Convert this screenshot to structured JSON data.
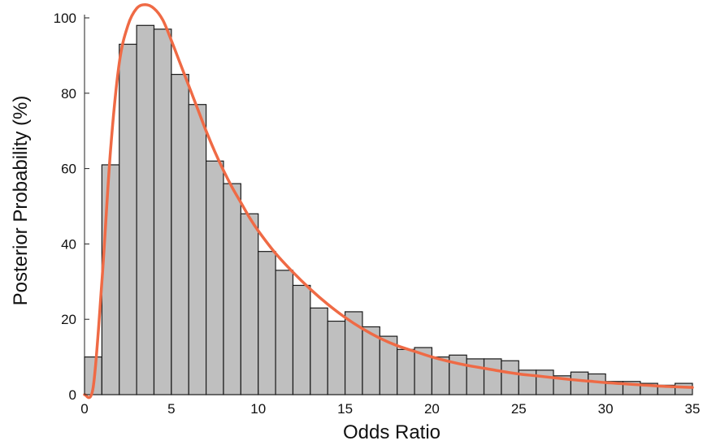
{
  "chart_data": {
    "type": "bar",
    "title": "",
    "xlabel": "Odds Ratio",
    "ylabel": "Posterior Probability (%)",
    "xlim": [
      0,
      35
    ],
    "ylim": [
      0,
      100
    ],
    "bin_width": 1,
    "bins": [
      {
        "x0": 0,
        "x1": 1,
        "value": 10
      },
      {
        "x0": 1,
        "x1": 2,
        "value": 61
      },
      {
        "x0": 2,
        "x1": 3,
        "value": 93
      },
      {
        "x0": 3,
        "x1": 4,
        "value": 98
      },
      {
        "x0": 4,
        "x1": 5,
        "value": 97
      },
      {
        "x0": 5,
        "x1": 6,
        "value": 85
      },
      {
        "x0": 6,
        "x1": 7,
        "value": 77
      },
      {
        "x0": 7,
        "x1": 8,
        "value": 62
      },
      {
        "x0": 8,
        "x1": 9,
        "value": 56
      },
      {
        "x0": 9,
        "x1": 10,
        "value": 48
      },
      {
        "x0": 10,
        "x1": 11,
        "value": 38
      },
      {
        "x0": 11,
        "x1": 12,
        "value": 33
      },
      {
        "x0": 12,
        "x1": 13,
        "value": 29
      },
      {
        "x0": 13,
        "x1": 14,
        "value": 23
      },
      {
        "x0": 14,
        "x1": 15,
        "value": 19.5
      },
      {
        "x0": 15,
        "x1": 16,
        "value": 22
      },
      {
        "x0": 16,
        "x1": 17,
        "value": 18
      },
      {
        "x0": 17,
        "x1": 18,
        "value": 15.5
      },
      {
        "x0": 18,
        "x1": 19,
        "value": 12
      },
      {
        "x0": 19,
        "x1": 20,
        "value": 12.5
      },
      {
        "x0": 20,
        "x1": 21,
        "value": 10
      },
      {
        "x0": 21,
        "x1": 22,
        "value": 10.5
      },
      {
        "x0": 22,
        "x1": 23,
        "value": 9.5
      },
      {
        "x0": 23,
        "x1": 24,
        "value": 9.5
      },
      {
        "x0": 24,
        "x1": 25,
        "value": 9
      },
      {
        "x0": 25,
        "x1": 26,
        "value": 6.5
      },
      {
        "x0": 26,
        "x1": 27,
        "value": 6.5
      },
      {
        "x0": 27,
        "x1": 28,
        "value": 5
      },
      {
        "x0": 28,
        "x1": 29,
        "value": 6
      },
      {
        "x0": 29,
        "x1": 30,
        "value": 5.5
      },
      {
        "x0": 30,
        "x1": 31,
        "value": 3.5
      },
      {
        "x0": 31,
        "x1": 32,
        "value": 3.5
      },
      {
        "x0": 32,
        "x1": 33,
        "value": 3
      },
      {
        "x0": 33,
        "x1": 34,
        "value": 2.5
      },
      {
        "x0": 34,
        "x1": 35,
        "value": 3
      }
    ],
    "curve": {
      "x": [
        0,
        0.5,
        1,
        1.5,
        2,
        2.5,
        3,
        3.5,
        4,
        4.5,
        5,
        5.5,
        6,
        6.5,
        7,
        7.5,
        8,
        8.5,
        9,
        9.5,
        10,
        11,
        12,
        13,
        14,
        15,
        16,
        17,
        18,
        19,
        20,
        21,
        22,
        23,
        24,
        25,
        26,
        27,
        28,
        29,
        30,
        31,
        32,
        33,
        34,
        35
      ],
      "y": [
        0,
        2,
        30,
        65,
        88,
        98,
        102.5,
        103.5,
        102.5,
        99.5,
        94,
        88,
        82,
        76,
        70,
        64.5,
        59.5,
        55,
        51,
        47,
        43.5,
        37.5,
        32.5,
        28,
        24,
        20.5,
        17.5,
        15,
        13,
        11.5,
        10,
        8.8,
        7.8,
        7,
        6.2,
        5.5,
        5,
        4.5,
        4,
        3.6,
        3.2,
        2.9,
        2.6,
        2.3,
        2.1,
        1.9
      ]
    },
    "x_ticks": [
      0,
      5,
      10,
      15,
      20,
      25,
      30,
      35
    ],
    "y_ticks": [
      0,
      20,
      40,
      60,
      80,
      100
    ],
    "grid": false,
    "legend": "none",
    "colors": {
      "bar_fill": "#bfbfbf",
      "bar_stroke": "#1a1a1a",
      "curve": "#ef6a45",
      "axis": "#222222"
    }
  }
}
